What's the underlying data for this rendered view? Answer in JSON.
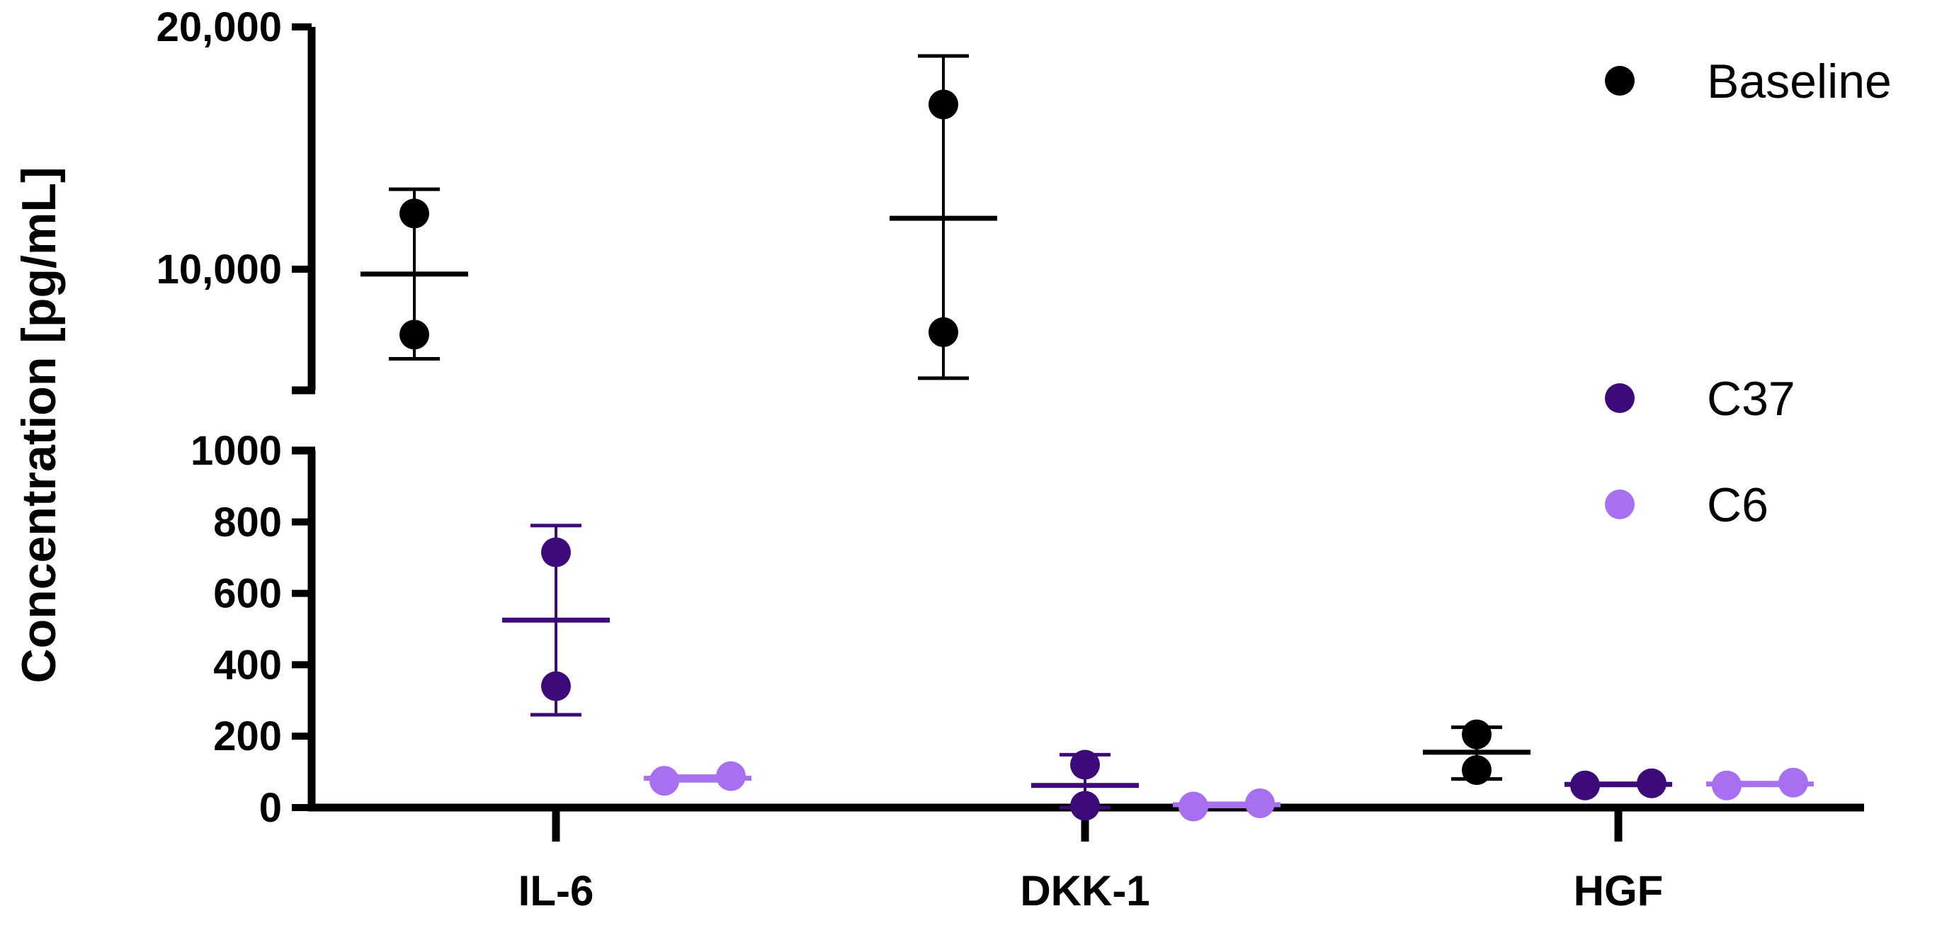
{
  "chart_data": {
    "type": "scatter",
    "title": "",
    "ylabel": "Concentration [pg/mL]",
    "xlabel": "",
    "categories": [
      "IL-6",
      "DKK-1",
      "HGF"
    ],
    "y_axis_break": {
      "lower_range": [
        0,
        1000
      ],
      "upper_range": [
        5000,
        20000
      ],
      "lower_ticks": [
        "0",
        "200",
        "400",
        "600",
        "800",
        "1000"
      ],
      "upper_ticks": [
        "10,000",
        "20,000"
      ]
    },
    "legend": {
      "position": "right",
      "entries": [
        "Baseline",
        "C37",
        "C6"
      ]
    },
    "series": [
      {
        "name": "Baseline",
        "color": "#000000",
        "groups": [
          {
            "category": "IL-6",
            "points": [
              12300,
              7300
            ],
            "mean": 9800,
            "error_low": 6300,
            "error_high": 13300
          },
          {
            "category": "DKK-1",
            "points": [
              16800,
              7400
            ],
            "mean": 12100,
            "error_low": 5500,
            "error_high": 18800
          },
          {
            "category": "HGF",
            "points": [
              205,
              105
            ],
            "mean": 155,
            "error_low": 80,
            "error_high": 225
          }
        ]
      },
      {
        "name": "C37",
        "color": "#3d0a7a",
        "groups": [
          {
            "category": "IL-6",
            "points": [
              715,
              340
            ],
            "mean": 525,
            "error_low": 260,
            "error_high": 790
          },
          {
            "category": "DKK-1",
            "points": [
              120,
              5
            ],
            "mean": 62,
            "error_low": 0,
            "error_high": 148
          },
          {
            "category": "HGF",
            "points": [
              62,
              68
            ],
            "mean": 65,
            "error_low": 62,
            "error_high": 68
          }
        ]
      },
      {
        "name": "C6",
        "color": "#a670f0",
        "groups": [
          {
            "category": "IL-6",
            "points": [
              75,
              88
            ],
            "mean": 82,
            "error_low": 75,
            "error_high": 88
          },
          {
            "category": "DKK-1",
            "points": [
              3,
              12
            ],
            "mean": 8,
            "error_low": 3,
            "error_high": 12
          },
          {
            "category": "HGF",
            "points": [
              62,
              70
            ],
            "mean": 66,
            "error_low": 62,
            "error_high": 70
          }
        ]
      }
    ]
  }
}
